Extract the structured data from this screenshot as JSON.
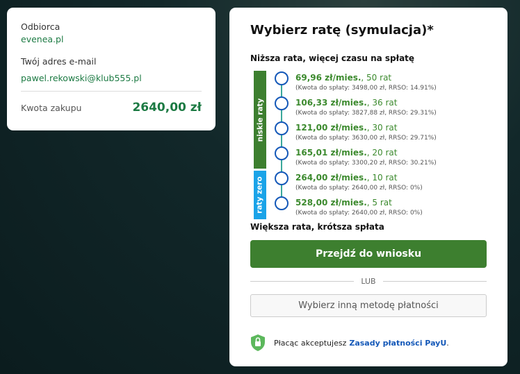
{
  "recipient": {
    "label": "Odbiorca",
    "value": "evenea.pl"
  },
  "email": {
    "label": "Twój adres e-mail",
    "value": "pawel.rekowski@klub555.pl"
  },
  "purchase": {
    "label": "Kwota zakupu",
    "value": "2640,00 zł"
  },
  "panel": {
    "title": "Wybierz ratę (symulacja)*",
    "top_hint": "Niższa rata, więcej czasu na spłatę",
    "bottom_hint": "Większa rata, krótsza spłata",
    "group_low": "niskie raty",
    "group_zero": "raty zero"
  },
  "options": [
    {
      "rate": "69,96 zł/mies.",
      "count": ", 50 rat",
      "details": "(Kwota do spłaty: 3498,00 zł, RRSO: 14.91%)"
    },
    {
      "rate": "106,33 zł/mies.",
      "count": ", 36 rat",
      "details": "(Kwota do spłaty: 3827,88 zł, RRSO: 29.31%)"
    },
    {
      "rate": "121,00 zł/mies.",
      "count": ", 30 rat",
      "details": "(Kwota do spłaty: 3630,00 zł, RRSO: 29.71%)"
    },
    {
      "rate": "165,01 zł/mies.",
      "count": ", 20 rat",
      "details": "(Kwota do spłaty: 3300,20 zł, RRSO: 30.21%)"
    },
    {
      "rate": "264,00 zł/mies.",
      "count": ", 10 rat",
      "details": "(Kwota do spłaty: 2640,00 zł, RRSO: 0%)"
    },
    {
      "rate": "528,00 zł/mies.",
      "count": ", 5 rat",
      "details": "(Kwota do spłaty: 2640,00 zł, RRSO: 0%)"
    }
  ],
  "actions": {
    "proceed": "Przejdź do wniosku",
    "or": "LUB",
    "other": "Wybierz inną metodę płatności"
  },
  "footer": {
    "text": "Płacąc akceptujesz",
    "link": "Zasady płatności PayU",
    "end": "."
  },
  "colors": {
    "brand_green": "#3d7f2f",
    "zero_blue": "#1aa3e8",
    "circle": "#1458b8",
    "accent_text": "#1c7a43"
  }
}
